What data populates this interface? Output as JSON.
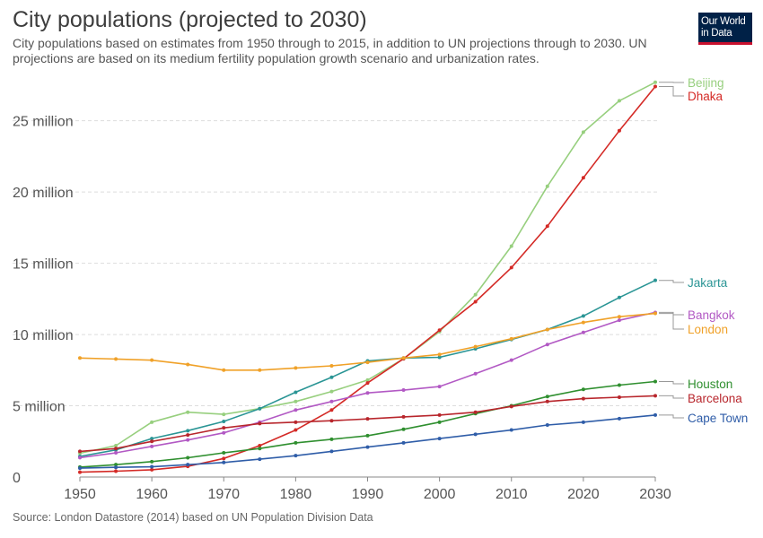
{
  "title": "City populations (projected to 2030)",
  "subtitle": "City populations based on estimates from 1950 through to 2015, in addition to UN projections through to 2030. UN projections are based on its medium fertility population growth scenario and urbanization rates.",
  "logo": {
    "line1": "Our World",
    "line2": "in Data"
  },
  "source": "Source: London Datastore (2014) based on UN Population Division Data",
  "colors": {
    "grid": "#dddddd",
    "axis": "#888888",
    "tick_text": "#555555"
  },
  "chart_data": {
    "type": "line",
    "title": "City populations (projected to 2030)",
    "x": [
      1950,
      1955,
      1960,
      1965,
      1970,
      1975,
      1980,
      1985,
      1990,
      1995,
      2000,
      2005,
      2010,
      2015,
      2020,
      2025,
      2030
    ],
    "xlim": [
      1950,
      2030
    ],
    "ylim": [
      0,
      28000000
    ],
    "x_ticks": [
      1950,
      1960,
      1970,
      1980,
      1990,
      2000,
      2010,
      2020,
      2030
    ],
    "x_tick_labels": [
      "1950",
      "1960",
      "1970",
      "1980",
      "1990",
      "2000",
      "2010",
      "2020",
      "2030"
    ],
    "y_ticks": [
      0,
      5000000,
      10000000,
      15000000,
      20000000,
      25000000
    ],
    "y_tick_labels": [
      "0",
      "5 million",
      "10 million",
      "15 million",
      "20 million",
      "25 million"
    ],
    "grid": "horizontal dashed",
    "legend": "right, labels at line ends",
    "series": [
      {
        "name": "Beijing",
        "color": "#97cf7e",
        "values": [
          1670000,
          2200000,
          3850000,
          4550000,
          4400000,
          4800000,
          5300000,
          6000000,
          6800000,
          8300000,
          10200000,
          12800000,
          16200000,
          20400000,
          24200000,
          26400000,
          27700000
        ]
      },
      {
        "name": "Dhaka",
        "color": "#d42a26",
        "values": [
          340000,
          410000,
          510000,
          750000,
          1300000,
          2200000,
          3300000,
          4700000,
          6600000,
          8300000,
          10300000,
          12300000,
          14700000,
          17600000,
          21000000,
          24300000,
          27400000
        ]
      },
      {
        "name": "Jakarta",
        "color": "#2a9595",
        "values": [
          1450000,
          1900000,
          2700000,
          3250000,
          3900000,
          4800000,
          5950000,
          7000000,
          8150000,
          8350000,
          8400000,
          9000000,
          9650000,
          10350000,
          11300000,
          12600000,
          13800000
        ]
      },
      {
        "name": "Bangkok",
        "color": "#b259c4",
        "values": [
          1360000,
          1700000,
          2150000,
          2600000,
          3100000,
          3850000,
          4700000,
          5300000,
          5900000,
          6100000,
          6350000,
          7250000,
          8200000,
          9300000,
          10150000,
          11000000,
          11550000
        ]
      },
      {
        "name": "London",
        "color": "#f0a128",
        "values": [
          8350000,
          8280000,
          8200000,
          7900000,
          7500000,
          7500000,
          7650000,
          7800000,
          8050000,
          8350000,
          8600000,
          9150000,
          9700000,
          10350000,
          10850000,
          11250000,
          11480000
        ]
      },
      {
        "name": "Houston",
        "color": "#2f8f2f",
        "values": [
          700000,
          870000,
          1080000,
          1350000,
          1700000,
          2000000,
          2400000,
          2650000,
          2900000,
          3350000,
          3850000,
          4450000,
          5000000,
          5650000,
          6150000,
          6450000,
          6700000
        ]
      },
      {
        "name": "Barcelona",
        "color": "#b8262c",
        "values": [
          1800000,
          2000000,
          2500000,
          2950000,
          3450000,
          3750000,
          3850000,
          3950000,
          4080000,
          4220000,
          4350000,
          4550000,
          4950000,
          5300000,
          5500000,
          5600000,
          5700000
        ]
      },
      {
        "name": "Cape Town",
        "color": "#2f5da8",
        "values": [
          620000,
          680000,
          720000,
          870000,
          1020000,
          1250000,
          1500000,
          1800000,
          2100000,
          2400000,
          2700000,
          3000000,
          3300000,
          3650000,
          3850000,
          4100000,
          4350000
        ]
      }
    ]
  }
}
